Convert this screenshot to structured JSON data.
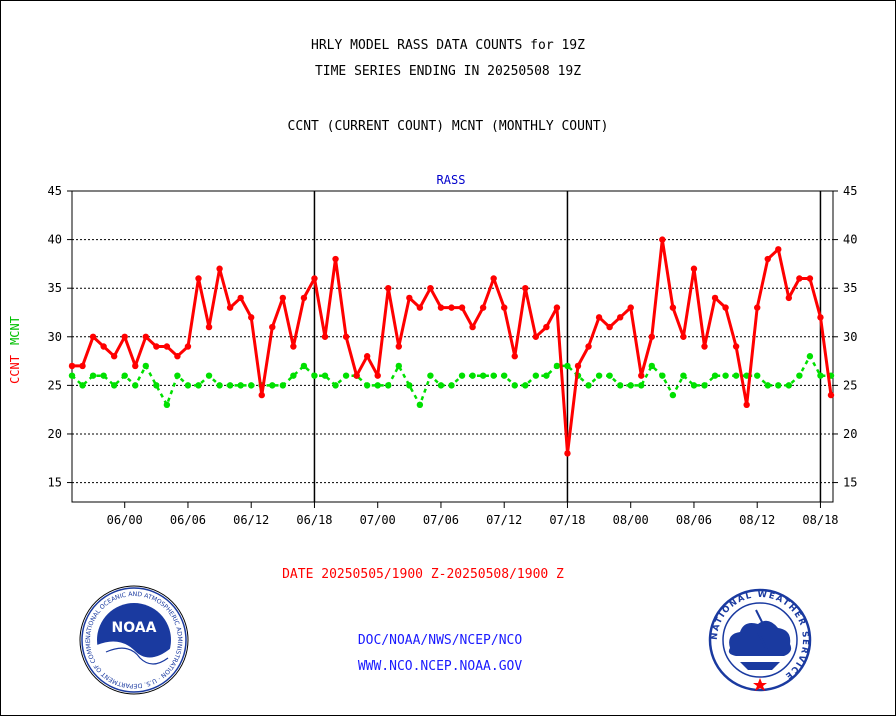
{
  "header": {
    "line1": "HRLY MODEL RASS DATA COUNTS for 19Z",
    "line2": "TIME SERIES ENDING IN 20250508 19Z",
    "line3": "CCNT (CURRENT COUNT) MCNT (MONTHLY COUNT)"
  },
  "chart_data": {
    "type": "line",
    "title": "RASS",
    "ylabel_parts": [
      "CCNT",
      "MCNT"
    ],
    "xlabel": "DATE 20250505/1900 Z-20250508/1900 Z",
    "ylim": [
      13,
      45
    ],
    "yticks": [
      15,
      20,
      25,
      30,
      35,
      40,
      45
    ],
    "xticks": [
      {
        "label": "06/00",
        "hour": 5
      },
      {
        "label": "06/06",
        "hour": 11
      },
      {
        "label": "06/12",
        "hour": 17
      },
      {
        "label": "06/18",
        "hour": 23
      },
      {
        "label": "07/00",
        "hour": 29
      },
      {
        "label": "07/06",
        "hour": 35
      },
      {
        "label": "07/12",
        "hour": 41
      },
      {
        "label": "07/18",
        "hour": 47
      },
      {
        "label": "08/00",
        "hour": 53
      },
      {
        "label": "08/06",
        "hour": 59
      },
      {
        "label": "08/12",
        "hour": 65
      },
      {
        "label": "08/18",
        "hour": 71
      }
    ],
    "day_boundaries_hour": [
      23,
      47,
      71
    ],
    "grid": true,
    "colors": {
      "ccnt": "#ff0000",
      "mcnt": "#00e000",
      "ylabel_ccnt": "#ff0000",
      "ylabel_mcnt": "#00c000",
      "title": "#0000cc",
      "xlabel": "#ff0000"
    },
    "series": [
      {
        "name": "CCNT",
        "values": [
          27,
          27,
          30,
          29,
          28,
          30,
          27,
          30,
          29,
          29,
          28,
          29,
          36,
          31,
          37,
          33,
          34,
          32,
          24,
          31,
          34,
          29,
          34,
          36,
          30,
          38,
          30,
          26,
          28,
          26,
          35,
          29,
          34,
          33,
          35,
          33,
          33,
          33,
          31,
          33,
          36,
          33,
          28,
          35,
          30,
          31,
          33,
          18,
          27,
          29,
          32,
          31,
          32,
          33,
          26,
          30,
          40,
          33,
          30,
          37,
          29,
          34,
          33,
          29,
          23,
          33,
          38,
          39,
          34,
          36,
          36,
          32,
          24
        ]
      },
      {
        "name": "MCNT",
        "values": [
          26,
          25,
          26,
          26,
          25,
          26,
          25,
          27,
          25,
          23,
          26,
          25,
          25,
          26,
          25,
          25,
          25,
          25,
          25,
          25,
          25,
          26,
          27,
          26,
          26,
          25,
          26,
          26,
          25,
          25,
          25,
          27,
          25,
          23,
          26,
          25,
          25,
          26,
          26,
          26,
          26,
          26,
          25,
          25,
          26,
          26,
          27,
          27,
          26,
          25,
          26,
          26,
          25,
          25,
          25,
          27,
          26,
          24,
          26,
          25,
          25,
          26,
          26,
          26,
          26,
          26,
          25,
          25,
          25,
          26,
          28,
          26,
          26
        ]
      }
    ]
  },
  "footer": {
    "left_logo_label": "NOAA",
    "left_logo_ring": "NATIONAL OCEANIC AND ATMOSPHERIC ADMINISTRATION · U.S. DEPARTMENT OF COMMERCE ·",
    "right_logo_ring": "NATIONAL WEATHER SERVICE",
    "org_line": "DOC/NOAA/NWS/NCEP/NCO",
    "url_line": "WWW.NCO.NCEP.NOAA.GOV"
  }
}
